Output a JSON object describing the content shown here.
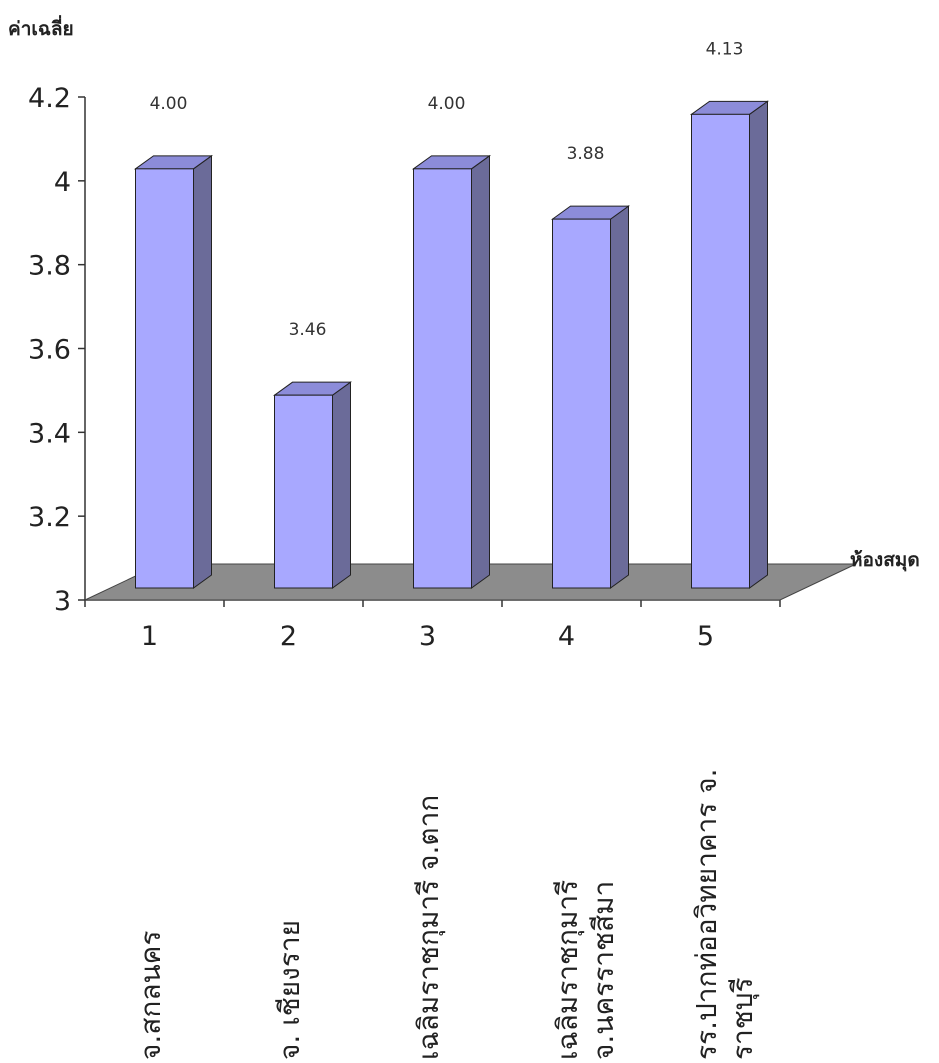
{
  "chart_data": {
    "type": "bar",
    "style": "3d-column",
    "title": "",
    "ylabel": "ค่าเฉลี่ย",
    "xlabel": "ห้องสมุด",
    "ylim": [
      3,
      4.2
    ],
    "yticks": [
      "3",
      "3.2",
      "3.4",
      "3.6",
      "3.8",
      "4",
      "4.2"
    ],
    "categories": [
      "1",
      "2",
      "3",
      "4",
      "5"
    ],
    "category_names": [
      "จ.สกลนคร",
      "จ. เชียงราย",
      "เฉลิมราชกุมารี จ.ตาก",
      "เฉลิมราชกุมารี จ.นครราชสีมา",
      "รร.ปากท่ออวิทยาคาร จ. ราชบุรี"
    ],
    "values": [
      4.0,
      3.46,
      4.0,
      3.88,
      4.13
    ],
    "data_labels": [
      "4.00",
      "3.46",
      "4.00",
      "3.88",
      "4.13"
    ],
    "grid": false,
    "colors": {
      "bar_front": "#a8a8ff",
      "bar_side": "#6b6b99",
      "bar_top": "#8c8cd9",
      "floor": "#8c8c8c"
    }
  }
}
